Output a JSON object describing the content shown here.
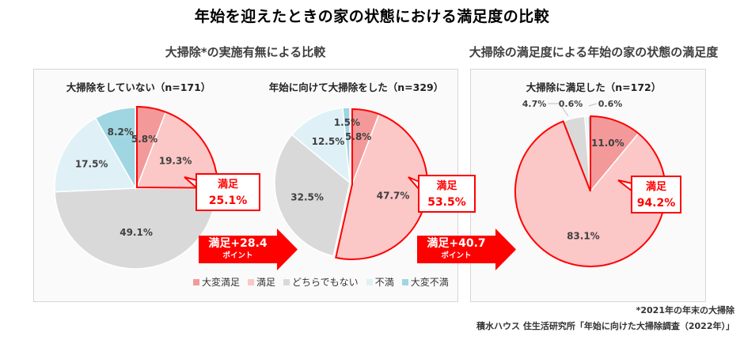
{
  "title": "年始を迎えたときの家の状態における満足度の比較",
  "sections": {
    "left_title": "大掃除*の実施有無による比較",
    "right_title": "大掃除の満足度による年始の家の状態の満足度"
  },
  "legend": [
    {
      "label": "大変満足",
      "color": "#f4999a"
    },
    {
      "label": "満足",
      "color": "#fcc7c7"
    },
    {
      "label": "どちらでもない",
      "color": "#d9d9d9"
    },
    {
      "label": "不満",
      "color": "#dff1f6"
    },
    {
      "label": "大変不満",
      "color": "#9fd6e1"
    }
  ],
  "callouts": [
    {
      "label": "満足",
      "value": "25.1%"
    },
    {
      "label": "満足",
      "value": "53.5%"
    },
    {
      "label": "満足",
      "value": "94.2%"
    }
  ],
  "arrows": [
    {
      "line1": "満足+28.4",
      "line2": "ポイント"
    },
    {
      "line1": "満足+40.7",
      "line2": "ポイント"
    }
  ],
  "footnotes": {
    "note": "*2021年の年末の大掃除",
    "source": "積水ハウス 住生活研究所「年始に向けた大掃除調査（2022年）」"
  },
  "colors": {
    "highlight": "#ff0000",
    "panel_bg": "#fafafa"
  },
  "chart_data": [
    {
      "type": "pie",
      "title": "大掃除をしていない（n=171）",
      "categories": [
        "大変満足",
        "満足",
        "どちらでもない",
        "不満",
        "大変不満"
      ],
      "values": [
        5.8,
        19.3,
        49.1,
        17.5,
        8.2
      ],
      "labels": [
        "5.8%",
        "19.3%",
        "49.1%",
        "17.5%",
        "8.2%"
      ],
      "highlight_group": "満足 (大変満足+満足) = 25.1%"
    },
    {
      "type": "pie",
      "title": "年始に向けて大掃除をした（n=329）",
      "categories": [
        "大変満足",
        "満足",
        "どちらでもない",
        "不満",
        "大変不満"
      ],
      "values": [
        5.8,
        47.7,
        32.5,
        12.5,
        1.5
      ],
      "labels": [
        "5.8%",
        "47.7%",
        "32.5%",
        "12.5%",
        "1.5%"
      ],
      "highlight_group": "満足 (大変満足+満足) = 53.5%"
    },
    {
      "type": "pie",
      "title": "大掃除に満足した（n=172）",
      "categories": [
        "大変満足",
        "満足",
        "どちらでもない",
        "不満",
        "大変不満"
      ],
      "values": [
        11.0,
        83.1,
        4.7,
        0.6,
        0.6
      ],
      "labels": [
        "11.0%",
        "83.1%",
        "4.7%",
        "0.6%",
        "0.6%"
      ],
      "highlight_group": "満足 (大変満足+満足) = 94.2%"
    }
  ]
}
